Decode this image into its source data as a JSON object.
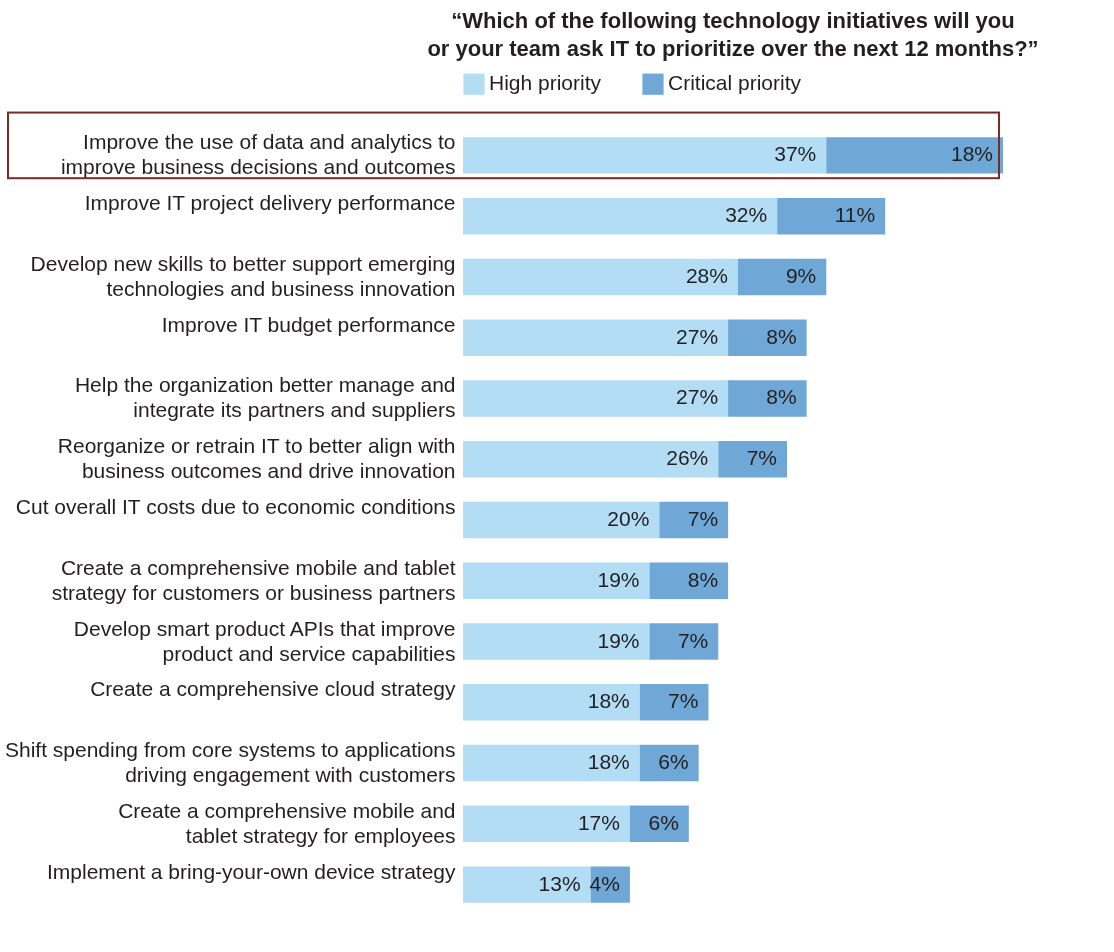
{
  "chart_data": {
    "type": "bar",
    "orientation": "horizontal",
    "stacked": true,
    "title": "“Which of the following technology initiatives will you\nor your team ask IT to prioritize over the next 12 months?”",
    "legend": "top",
    "categories": [
      "Improve the use of data and analytics to\nimprove business decisions and outcomes",
      "Improve IT project delivery performance",
      "Develop new skills to better support emerging\ntechnologies and business innovation",
      "Improve IT budget performance",
      "Help the organization better manage and\nintegrate its partners and suppliers",
      "Reorganize or retrain IT to better align with\nbusiness outcomes and drive innovation",
      "Cut overall IT costs due to economic conditions",
      "Create a comprehensive mobile and tablet\nstrategy for customers or business partners",
      "Develop smart product APIs that improve\nproduct and service capabilities",
      "Create a comprehensive cloud strategy",
      "Shift spending from core systems to applications\ndriving engagement with customers",
      "Create a comprehensive mobile and\ntablet strategy for employees",
      "Implement a bring-your-own device strategy"
    ],
    "series": [
      {
        "name": "High priority",
        "color": "#b3ddf5",
        "values": [
          37,
          32,
          28,
          27,
          27,
          26,
          20,
          19,
          19,
          18,
          18,
          17,
          13
        ],
        "value_labels": [
          "37%",
          "32%",
          "28%",
          "27%",
          "27%",
          "26%",
          "20%",
          "19%",
          "19%",
          "18%",
          "18%",
          "17%",
          "13%"
        ]
      },
      {
        "name": "Critical priority",
        "color": "#6fa8d6",
        "values": [
          18,
          11,
          9,
          8,
          8,
          7,
          7,
          8,
          7,
          7,
          6,
          6,
          4
        ],
        "value_labels": [
          "18%",
          "11%",
          "9%",
          "8%",
          "8%",
          "7%",
          "7%",
          "8%",
          "7%",
          "7%",
          "6%",
          "6%",
          "4%"
        ]
      }
    ]
  }
}
